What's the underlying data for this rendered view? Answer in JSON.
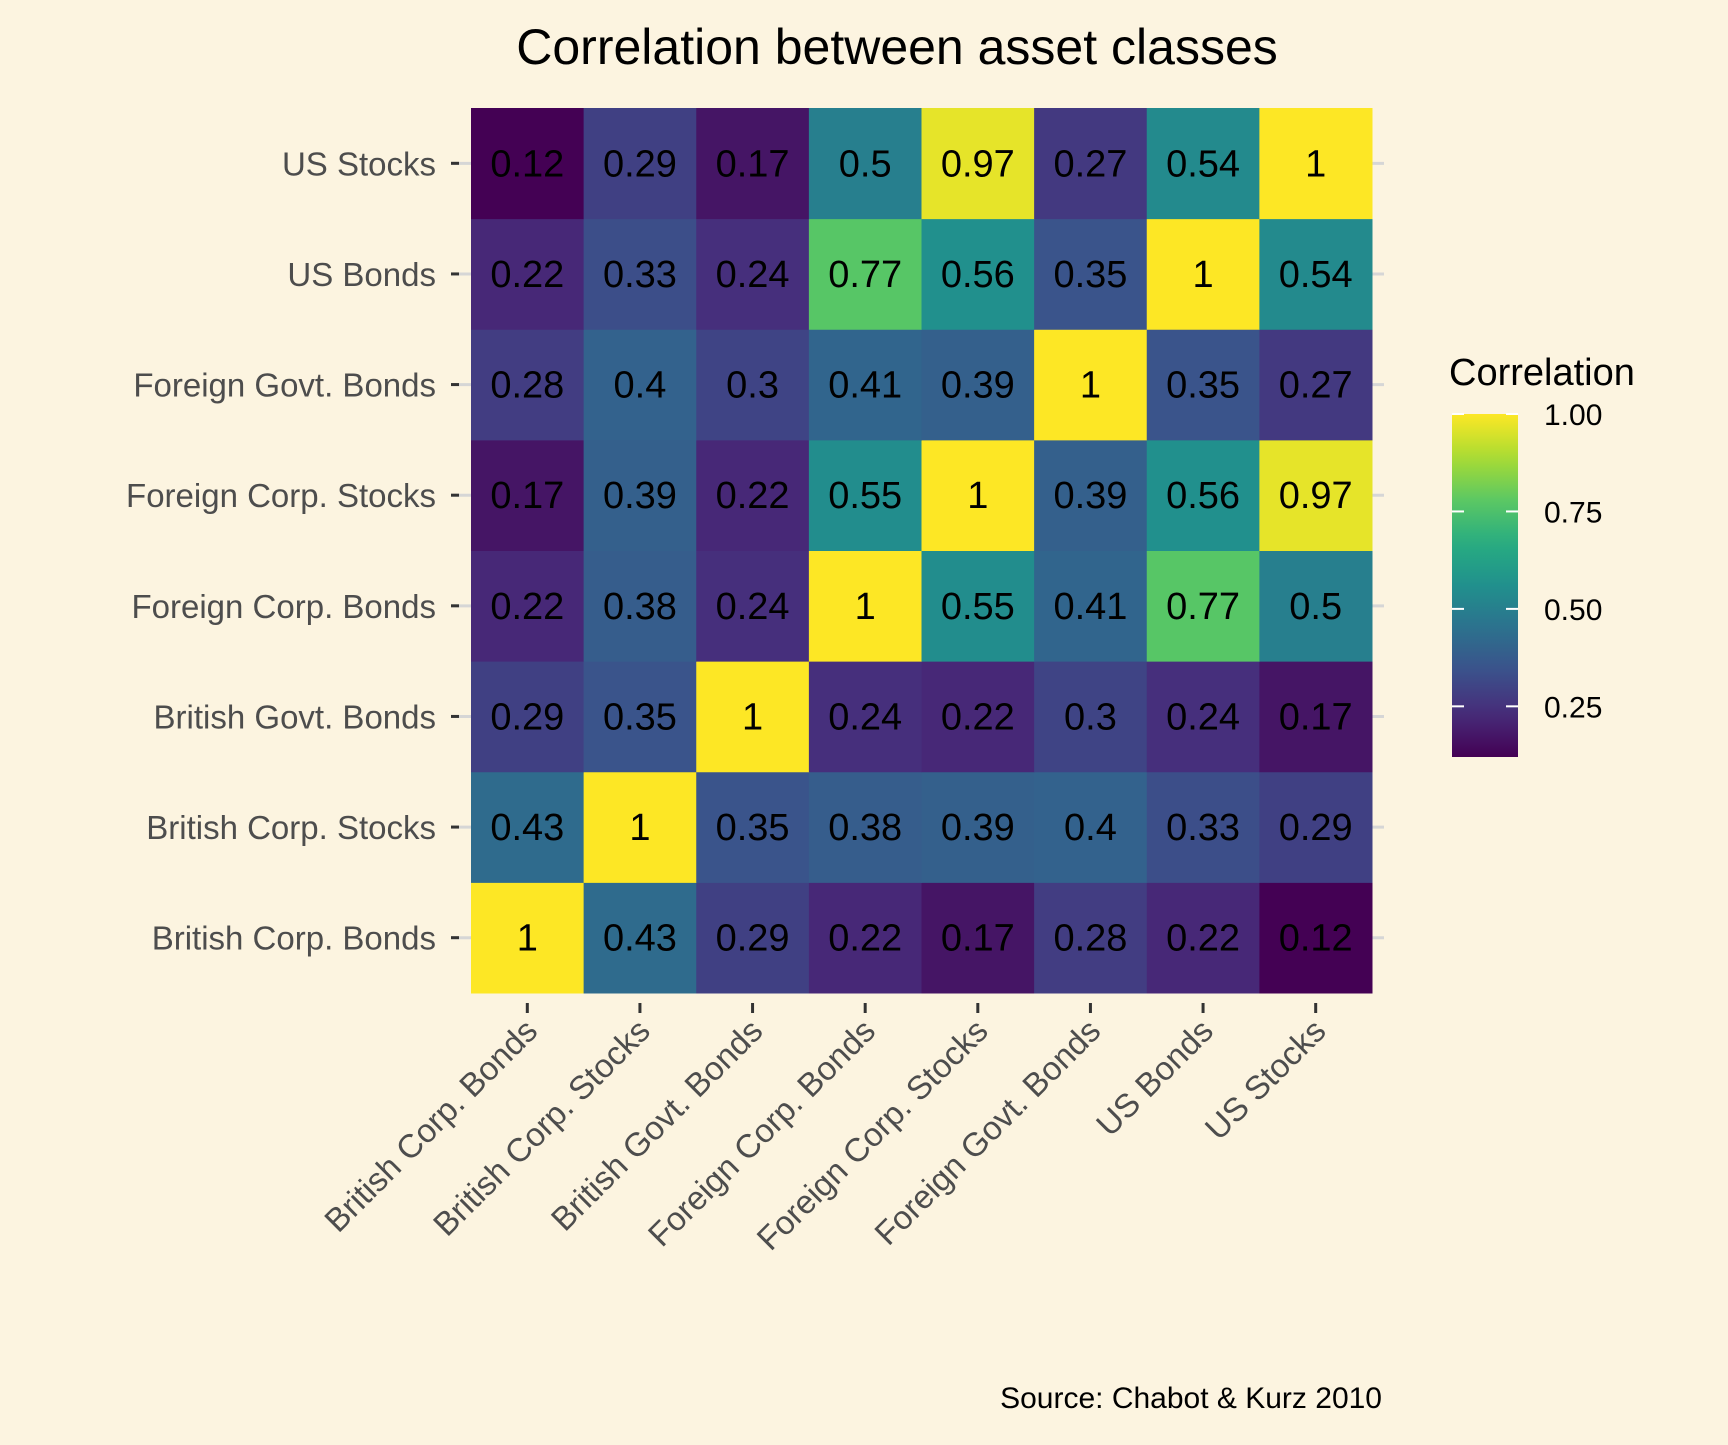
{
  "chart_data": {
    "type": "heatmap",
    "title": "Correlation between asset classes",
    "caption": "Source: Chabot & Kurz 2010",
    "x_categories": [
      "British Corp. Bonds",
      "British Corp. Stocks",
      "British Govt. Bonds",
      "Foreign Corp. Bonds",
      "Foreign Corp. Stocks",
      "Foreign Govt. Bonds",
      "US Bonds",
      "US Stocks"
    ],
    "y_categories": [
      "British Corp. Bonds",
      "British Corp. Stocks",
      "British Govt. Bonds",
      "Foreign Corp. Bonds",
      "Foreign Corp. Stocks",
      "Foreign Govt. Bonds",
      "US Bonds",
      "US Stocks"
    ],
    "matrix": [
      [
        1,
        0.43,
        0.29,
        0.22,
        0.17,
        0.28,
        0.22,
        0.12
      ],
      [
        0.43,
        1,
        0.35,
        0.38,
        0.39,
        0.4,
        0.33,
        0.29
      ],
      [
        0.29,
        0.35,
        1,
        0.24,
        0.22,
        0.3,
        0.24,
        0.17
      ],
      [
        0.22,
        0.38,
        0.24,
        1,
        0.55,
        0.41,
        0.77,
        0.5
      ],
      [
        0.17,
        0.39,
        0.22,
        0.55,
        1,
        0.39,
        0.56,
        0.97
      ],
      [
        0.28,
        0.4,
        0.3,
        0.41,
        0.39,
        1,
        0.35,
        0.27
      ],
      [
        0.22,
        0.33,
        0.24,
        0.77,
        0.56,
        0.35,
        1,
        0.54
      ],
      [
        0.12,
        0.29,
        0.17,
        0.5,
        0.97,
        0.27,
        0.54,
        1
      ]
    ],
    "legend": {
      "title": "Correlation",
      "ticks": [
        "1.00",
        "0.75",
        "0.50",
        "0.25"
      ],
      "tick_values": [
        1.0,
        0.75,
        0.5,
        0.25
      ],
      "range": [
        0.12,
        1.0
      ],
      "placement": "right"
    },
    "color_scale": "viridis",
    "grid": true
  },
  "colors": {
    "background": "#FCF4E0",
    "gridline": "#D6D6D6",
    "axis_text": "#4D4D4D",
    "text": "#000000"
  }
}
